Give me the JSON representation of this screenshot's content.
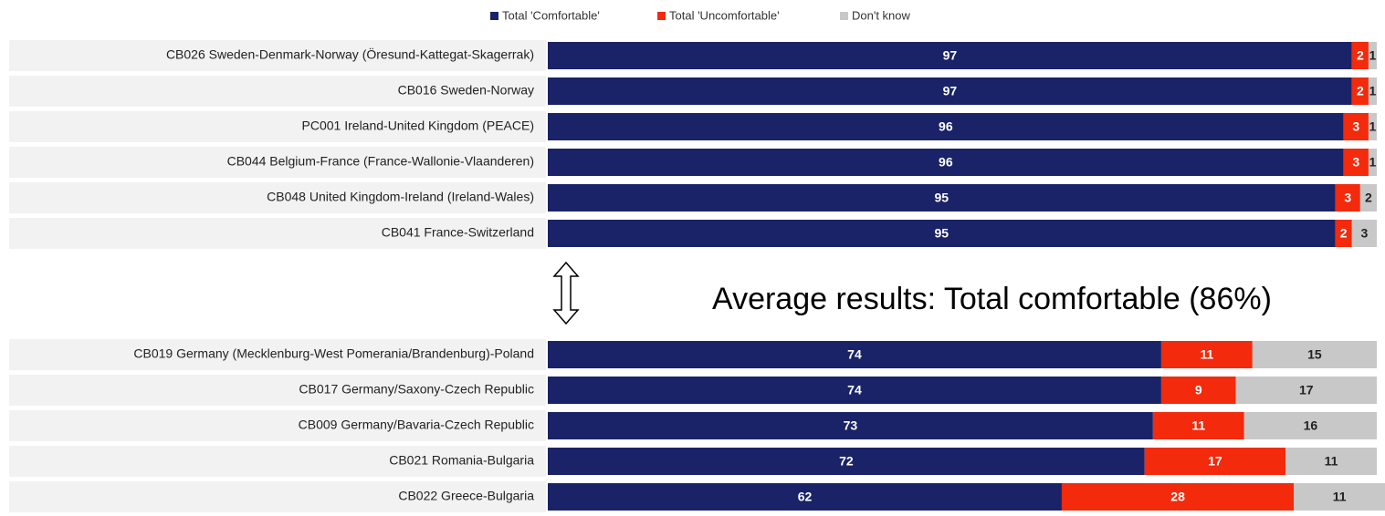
{
  "chart_data": {
    "type": "stacked-bar-horizontal",
    "categories": [
      "CB026 Sweden-Denmark-Norway (Öresund-Kattegat-Skagerrak)",
      "CB016 Sweden-Norway",
      "PC001 Ireland-United Kingdom (PEACE)",
      "CB044 Belgium-France (France-Wallonie-Vlaanderen)",
      "CB048 United Kingdom-Ireland (Ireland-Wales)",
      "CB041 France-Switzerland",
      "CB019 Germany (Mecklenburg-West Pomerania/Brandenburg)-Poland",
      "CB017 Germany/Saxony-Czech Republic",
      "CB009 Germany/Bavaria-Czech Republic",
      "CB021 Romania-Bulgaria",
      "CB022 Greece-Bulgaria"
    ],
    "series": [
      {
        "name": "Total 'Comfortable'",
        "color": "#1a2368",
        "values": [
          97,
          97,
          96,
          96,
          95,
          95,
          74,
          74,
          73,
          72,
          62
        ]
      },
      {
        "name": "Total 'Uncomfortable'",
        "color": "#f32a0c",
        "values": [
          2,
          2,
          3,
          3,
          3,
          2,
          11,
          9,
          11,
          17,
          28
        ]
      },
      {
        "name": "Don't know",
        "color": "#c8c8c8",
        "values": [
          1,
          1,
          1,
          1,
          2,
          3,
          15,
          17,
          16,
          11,
          11
        ]
      }
    ],
    "xlim": [
      0,
      100
    ],
    "annotation": "Average results: Total comfortable (86%)"
  }
}
